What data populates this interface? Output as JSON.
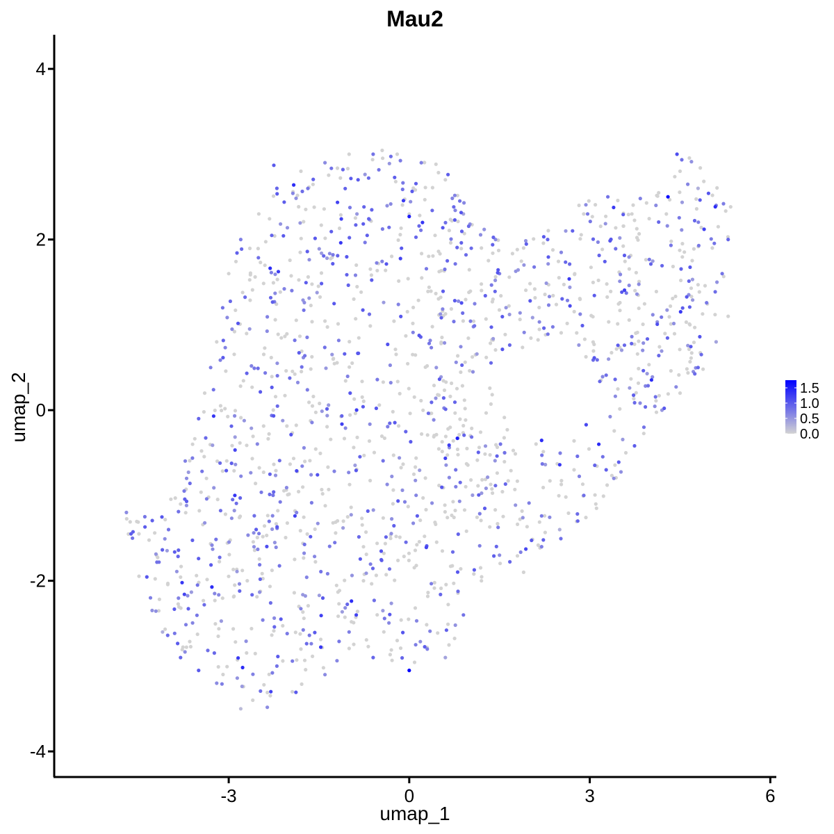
{
  "chart_data": {
    "type": "scatter",
    "title": "Mau2",
    "xlabel": "umap_1",
    "ylabel": "umap_2",
    "xlim": [
      -5.9,
      6.1
    ],
    "ylim": [
      -4.3,
      4.4
    ],
    "xticks": [
      -3,
      0,
      3,
      6
    ],
    "xtick_labels": [
      "-3",
      "0",
      "3",
      "6"
    ],
    "yticks": [
      -4,
      -2,
      0,
      2,
      4
    ],
    "ytick_labels": [
      "-4",
      "-2",
      "0",
      "2",
      "4"
    ],
    "grid": false,
    "legend": {
      "placement": "right",
      "type": "colorbar",
      "range": [
        0,
        1.75
      ],
      "ticks": [
        0.0,
        0.5,
        1.0,
        1.5
      ],
      "tick_labels": [
        "0.0",
        "0.5",
        "1.0",
        "1.5"
      ],
      "low_color": "#d3d3d3",
      "high_color": "#0000ff"
    },
    "n_points_approx": 1500,
    "points": [
      [
        0.0,
        -3.05,
        1.8
      ],
      [
        4.3,
        2.5,
        1.7
      ],
      [
        0.8,
        -0.33,
        1.5
      ],
      [
        3.15,
        -0.4,
        1.4
      ],
      [
        -3.25,
        -0.07,
        1.3
      ],
      [
        0.0,
        2.27,
        1.5
      ],
      [
        0.22,
        2.2,
        1.3
      ],
      [
        -2.3,
        -3.3,
        1.2
      ],
      [
        -0.88,
        -2.4,
        1.2
      ],
      [
        4.45,
        3.0,
        1.1
      ],
      [
        4.9,
        2.12,
        1.2
      ],
      [
        -0.85,
        2.7,
        1.0
      ],
      [
        -2.25,
        2.87,
        1.0
      ],
      [
        -4.7,
        -1.2,
        0.6
      ],
      [
        -4.6,
        -1.5,
        0.8
      ],
      [
        -4.3,
        -2.2,
        0.7
      ],
      [
        -4.1,
        -2.6,
        0.3
      ],
      [
        -3.8,
        -2.9,
        0.9
      ],
      [
        -3.5,
        -3.05,
        1.0
      ],
      [
        -3.2,
        -3.2,
        0.6
      ],
      [
        -2.8,
        -3.5,
        0.2
      ],
      [
        -2.6,
        -3.4,
        0.0
      ],
      [
        -2.2,
        -3.0,
        0.8
      ],
      [
        -1.8,
        -2.8,
        0.0
      ],
      [
        -1.4,
        -3.1,
        0.6
      ],
      [
        -1.0,
        -2.6,
        0.7
      ],
      [
        -0.6,
        -2.9,
        0.9
      ],
      [
        -0.2,
        -2.7,
        0.0
      ],
      [
        0.3,
        -2.8,
        0.7
      ],
      [
        0.6,
        -2.9,
        0.4
      ],
      [
        0.9,
        -2.4,
        0.8
      ],
      [
        1.2,
        -2.0,
        0.0
      ],
      [
        1.5,
        -1.7,
        0.6
      ],
      [
        1.9,
        -1.9,
        0.0
      ],
      [
        2.2,
        -1.6,
        0.7
      ],
      [
        2.5,
        -1.4,
        0.3
      ],
      [
        2.8,
        -1.3,
        0.9
      ],
      [
        3.1,
        -1.1,
        0.0
      ],
      [
        3.4,
        -0.8,
        0.6
      ],
      [
        3.6,
        -0.5,
        0.0
      ],
      [
        3.9,
        -0.2,
        0.8
      ],
      [
        4.2,
        0.0,
        0.5
      ],
      [
        4.5,
        0.2,
        0.0
      ],
      [
        4.8,
        0.5,
        0.9
      ],
      [
        5.1,
        0.8,
        0.4
      ],
      [
        5.3,
        1.1,
        0.0
      ],
      [
        5.2,
        1.6,
        0.8
      ],
      [
        5.3,
        2.0,
        0.9
      ],
      [
        5.1,
        2.4,
        0.7
      ],
      [
        4.8,
        2.6,
        0.3
      ],
      [
        4.5,
        2.8,
        0.0
      ],
      [
        4.1,
        2.4,
        0.6
      ],
      [
        3.7,
        2.3,
        0.0
      ],
      [
        3.3,
        2.5,
        0.8
      ],
      [
        2.9,
        2.3,
        0.0
      ],
      [
        2.6,
        2.1,
        0.5
      ],
      [
        2.3,
        2.0,
        0.9
      ],
      [
        1.9,
        1.9,
        0.0
      ],
      [
        1.5,
        1.6,
        0.7
      ],
      [
        1.2,
        1.9,
        0.0
      ],
      [
        0.9,
        2.3,
        0.4
      ],
      [
        0.6,
        2.7,
        0.0
      ],
      [
        0.2,
        2.9,
        0.7
      ],
      [
        -0.2,
        3.0,
        0.0
      ],
      [
        -0.6,
        3.0,
        0.8
      ],
      [
        -1.0,
        3.0,
        0.0
      ],
      [
        -1.4,
        2.9,
        0.6
      ],
      [
        -1.8,
        2.8,
        0.0
      ],
      [
        -2.2,
        2.6,
        0.9
      ],
      [
        -2.5,
        2.3,
        0.0
      ],
      [
        -2.8,
        2.0,
        0.7
      ],
      [
        -3.0,
        1.6,
        0.0
      ],
      [
        -3.1,
        1.2,
        0.8
      ],
      [
        -3.2,
        0.8,
        0.0
      ],
      [
        -3.3,
        0.5,
        0.7
      ],
      [
        -3.4,
        0.2,
        0.0
      ],
      [
        -3.5,
        -0.1,
        0.9
      ],
      [
        -3.6,
        -0.4,
        0.0
      ],
      [
        -3.7,
        -0.8,
        0.6
      ],
      [
        -3.8,
        -1.1,
        0.0
      ],
      [
        -4.0,
        -1.4,
        0.8
      ],
      [
        -4.2,
        -1.7,
        0.0
      ]
    ]
  }
}
